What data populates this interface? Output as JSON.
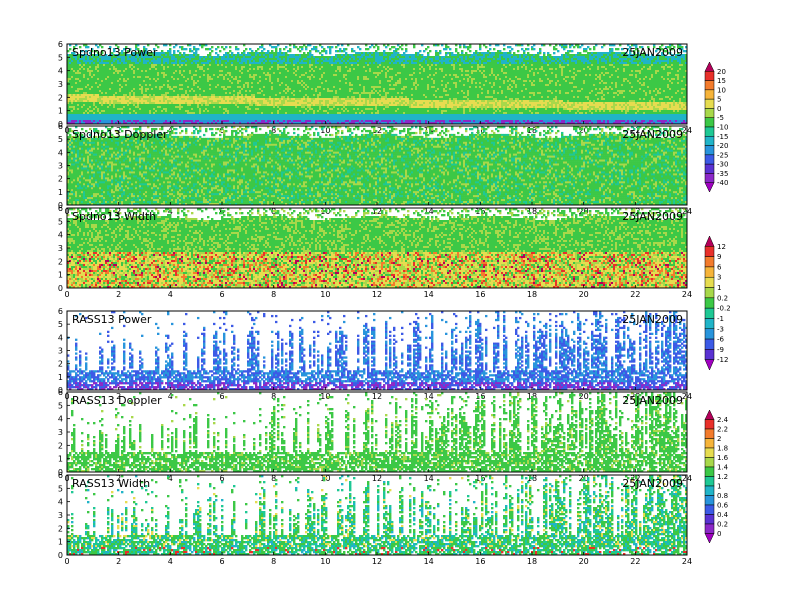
{
  "date_label": "25JAN2009",
  "chart_data": [
    {
      "type": "heatmap",
      "title": "Spdno13 Power",
      "date": "25JAN2009",
      "x_range": [
        0,
        24
      ],
      "y_range": [
        0,
        6
      ],
      "x_ticks": [
        0,
        2,
        4,
        6,
        8,
        10,
        12,
        14,
        16,
        18,
        20,
        22,
        24
      ],
      "y_ticks": [
        0,
        1,
        2,
        3,
        4,
        5,
        6
      ],
      "colorbar_group": 0
    },
    {
      "type": "heatmap",
      "title": "Spdno13 Doppler",
      "date": "25JAN2009",
      "x_range": [
        0,
        24
      ],
      "y_range": [
        0,
        6
      ],
      "x_ticks": [
        0,
        2,
        4,
        6,
        8,
        10,
        12,
        14,
        16,
        18,
        20,
        22,
        24
      ],
      "y_ticks": [
        0,
        1,
        2,
        3,
        4,
        5,
        6
      ],
      "colorbar_group": 0
    },
    {
      "type": "heatmap",
      "title": "Spdno13 Width",
      "date": "25JAN2009",
      "x_range": [
        0,
        24
      ],
      "y_range": [
        0,
        6
      ],
      "x_ticks": [
        0,
        2,
        4,
        6,
        8,
        10,
        12,
        14,
        16,
        18,
        20,
        22,
        24
      ],
      "y_ticks": [
        0,
        1,
        2,
        3,
        4,
        5,
        6
      ],
      "colorbar_group": 1
    },
    {
      "type": "heatmap",
      "title": "RASS13 Power",
      "date": "25JAN2009",
      "x_range": [
        0,
        24
      ],
      "y_range": [
        0,
        6
      ],
      "x_ticks": [
        0,
        2,
        4,
        6,
        8,
        10,
        12,
        14,
        16,
        18,
        20,
        22,
        24
      ],
      "y_ticks": [
        0,
        1,
        2,
        3,
        4,
        5,
        6
      ],
      "colorbar_group": 1
    },
    {
      "type": "heatmap",
      "title": "RASS13 Doppler",
      "date": "25JAN2009",
      "x_range": [
        0,
        24
      ],
      "y_range": [
        0,
        6
      ],
      "x_ticks": [
        0,
        2,
        4,
        6,
        8,
        10,
        12,
        14,
        16,
        18,
        20,
        22,
        24
      ],
      "y_ticks": [
        0,
        1,
        2,
        3,
        4,
        5,
        6
      ],
      "colorbar_group": 2
    },
    {
      "type": "heatmap",
      "title": "RASS13 Width",
      "date": "25JAN2009",
      "x_range": [
        0,
        24
      ],
      "y_range": [
        0,
        6
      ],
      "x_ticks": [
        0,
        2,
        4,
        6,
        8,
        10,
        12,
        14,
        16,
        18,
        20,
        22,
        24
      ],
      "y_ticks": [
        0,
        1,
        2,
        3,
        4,
        5,
        6
      ],
      "colorbar_group": 2
    }
  ],
  "colorbars": [
    {
      "labels": [
        "20",
        "15",
        "10",
        "5",
        "0",
        "-5",
        "-10",
        "-15",
        "-20",
        "-25",
        "-30",
        "-35",
        "-40"
      ],
      "colors": [
        "#b4005a",
        "#e8302a",
        "#f37b2c",
        "#f6b43a",
        "#e6dc50",
        "#a8d84a",
        "#3cc846",
        "#1ec894",
        "#20b4c8",
        "#2894dc",
        "#3c5ae6",
        "#5a32d2",
        "#8c28c8",
        "#a000c0"
      ]
    },
    {
      "labels": [
        "12",
        "9",
        "6",
        "3",
        "1",
        "0.2",
        "-0.2",
        "-1",
        "-3",
        "-6",
        "-9",
        "-12"
      ],
      "colors": [
        "#b4005a",
        "#e8302a",
        "#f37b2c",
        "#f6b43a",
        "#e6dc50",
        "#a8d84a",
        "#3cc846",
        "#1ec894",
        "#20b4c8",
        "#2894dc",
        "#3c5ae6",
        "#5a32d2",
        "#a000c0"
      ]
    },
    {
      "labels": [
        "2.4",
        "2.2",
        "2",
        "1.8",
        "1.6",
        "1.4",
        "1.2",
        "1",
        "0.8",
        "0.6",
        "0.4",
        "0.2",
        "0"
      ],
      "colors": [
        "#b4005a",
        "#e8302a",
        "#f37b2c",
        "#f6b43a",
        "#e6dc50",
        "#a8d84a",
        "#3cc846",
        "#1ec894",
        "#20b4c8",
        "#2894dc",
        "#3c5ae6",
        "#5a32d2",
        "#8c28c8",
        "#a000c0"
      ]
    }
  ]
}
